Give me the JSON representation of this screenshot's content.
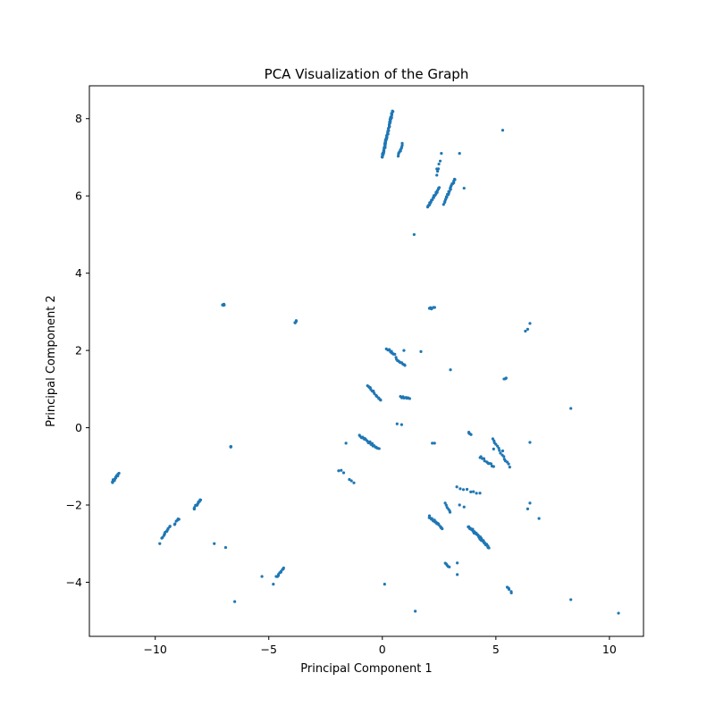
{
  "chart_data": {
    "type": "scatter",
    "title": "PCA Visualization of the Graph",
    "xlabel": "Principal Component 1",
    "ylabel": "Principal Component 2",
    "xlim": [
      -12.9,
      11.5
    ],
    "ylim": [
      -5.4,
      8.85
    ],
    "xticks": [
      -10,
      -5,
      0,
      5,
      10
    ],
    "yticks": [
      -4,
      -2,
      0,
      2,
      4,
      6,
      8
    ],
    "grid": false,
    "point_color": "#1f77b4",
    "clusters": [
      {
        "from": [
          0.0,
          7.0
        ],
        "to": [
          0.45,
          8.2
        ],
        "n": 60
      },
      {
        "from": [
          0.7,
          7.05
        ],
        "to": [
          0.9,
          7.35
        ],
        "n": 10
      },
      {
        "from": [
          2.0,
          5.7
        ],
        "to": [
          2.5,
          6.2
        ],
        "n": 20
      },
      {
        "from": [
          2.7,
          5.8
        ],
        "to": [
          3.2,
          6.45
        ],
        "n": 22
      },
      {
        "from": [
          2.4,
          6.55
        ],
        "to": [
          2.55,
          6.9
        ],
        "n": 5
      },
      {
        "from": [
          -11.9,
          -1.4
        ],
        "to": [
          -11.6,
          -1.2
        ],
        "n": 15
      },
      {
        "from": [
          -9.7,
          -2.85
        ],
        "to": [
          -9.35,
          -2.55
        ],
        "n": 12
      },
      {
        "from": [
          -9.15,
          -2.5
        ],
        "to": [
          -8.95,
          -2.35
        ],
        "n": 6
      },
      {
        "from": [
          -8.3,
          -2.1
        ],
        "to": [
          -8.0,
          -1.85
        ],
        "n": 12
      },
      {
        "from": [
          -4.65,
          -3.85
        ],
        "to": [
          -4.35,
          -3.65
        ],
        "n": 10
      },
      {
        "from": [
          0.2,
          2.05
        ],
        "to": [
          0.55,
          1.9
        ],
        "n": 10
      },
      {
        "from": [
          0.6,
          1.8
        ],
        "to": [
          1.0,
          1.6
        ],
        "n": 10
      },
      {
        "from": [
          -0.65,
          1.1
        ],
        "to": [
          -0.05,
          0.7
        ],
        "n": 16
      },
      {
        "from": [
          0.8,
          0.8
        ],
        "to": [
          1.2,
          0.75
        ],
        "n": 10
      },
      {
        "from": [
          -1.0,
          -0.2
        ],
        "to": [
          -0.15,
          -0.55
        ],
        "n": 22
      },
      {
        "from": [
          2.05,
          3.1
        ],
        "to": [
          2.3,
          3.1
        ],
        "n": 6
      },
      {
        "from": [
          2.05,
          -2.3
        ],
        "to": [
          2.65,
          -2.6
        ],
        "n": 22
      },
      {
        "from": [
          3.8,
          -2.55
        ],
        "to": [
          4.7,
          -3.1
        ],
        "n": 45
      },
      {
        "from": [
          4.3,
          -0.75
        ],
        "to": [
          4.9,
          -1.0
        ],
        "n": 12
      },
      {
        "from": [
          4.85,
          -0.3
        ],
        "to": [
          5.6,
          -1.0
        ],
        "n": 15
      },
      {
        "from": [
          2.75,
          -1.95
        ],
        "to": [
          3.0,
          -2.2
        ],
        "n": 6
      },
      {
        "from": [
          2.75,
          -3.5
        ],
        "to": [
          2.95,
          -3.6
        ],
        "n": 5
      },
      {
        "from": [
          5.5,
          -4.15
        ],
        "to": [
          5.7,
          -4.25
        ],
        "n": 5
      },
      {
        "from": [
          -7.05,
          3.2
        ],
        "to": [
          -6.95,
          3.17
        ],
        "n": 5
      },
      {
        "from": [
          -3.85,
          2.72
        ],
        "to": [
          -3.78,
          2.77
        ],
        "n": 4
      },
      {
        "from": [
          3.8,
          -0.12
        ],
        "to": [
          3.9,
          -0.16
        ],
        "n": 4
      },
      {
        "from": [
          -1.9,
          -1.1
        ],
        "to": [
          -1.7,
          -1.15
        ],
        "n": 3
      },
      {
        "from": [
          -1.45,
          -1.35
        ],
        "to": [
          -1.25,
          -1.45
        ],
        "n": 3
      },
      {
        "from": [
          -6.7,
          -0.47
        ],
        "to": [
          -6.65,
          -0.52
        ],
        "n": 3
      },
      {
        "from": [
          5.35,
          1.25
        ],
        "to": [
          5.45,
          1.3
        ],
        "n": 3
      },
      {
        "from": [
          3.3,
          -1.55
        ],
        "to": [
          4.3,
          -1.7
        ],
        "n": 8
      }
    ],
    "points": [
      [
        5.3,
        7.7
      ],
      [
        3.4,
        7.1
      ],
      [
        2.6,
        7.1
      ],
      [
        1.4,
        5.0
      ],
      [
        3.6,
        6.2
      ],
      [
        2.4,
        6.7
      ],
      [
        6.5,
        2.7
      ],
      [
        6.3,
        2.5
      ],
      [
        6.4,
        2.55
      ],
      [
        0.95,
        2.0
      ],
      [
        1.7,
        1.97
      ],
      [
        3.0,
        1.5
      ],
      [
        8.3,
        0.5
      ],
      [
        0.65,
        0.1
      ],
      [
        0.85,
        0.08
      ],
      [
        -1.6,
        -0.4
      ],
      [
        2.2,
        -0.4
      ],
      [
        2.3,
        -0.4
      ],
      [
        6.5,
        -0.38
      ],
      [
        6.5,
        -1.95
      ],
      [
        6.4,
        -2.1
      ],
      [
        6.9,
        -2.35
      ],
      [
        3.4,
        -2.0
      ],
      [
        3.6,
        -2.05
      ],
      [
        -9.8,
        -3.0
      ],
      [
        -7.4,
        -3.0
      ],
      [
        -6.9,
        -3.1
      ],
      [
        -5.3,
        -3.85
      ],
      [
        -4.8,
        -4.05
      ],
      [
        -6.5,
        -4.5
      ],
      [
        0.1,
        -4.05
      ],
      [
        1.45,
        -4.75
      ],
      [
        8.3,
        -4.45
      ],
      [
        10.4,
        -4.8
      ],
      [
        3.3,
        -3.5
      ],
      [
        3.3,
        -3.8
      ],
      [
        4.9,
        -0.55
      ],
      [
        5.3,
        -0.6
      ]
    ]
  }
}
